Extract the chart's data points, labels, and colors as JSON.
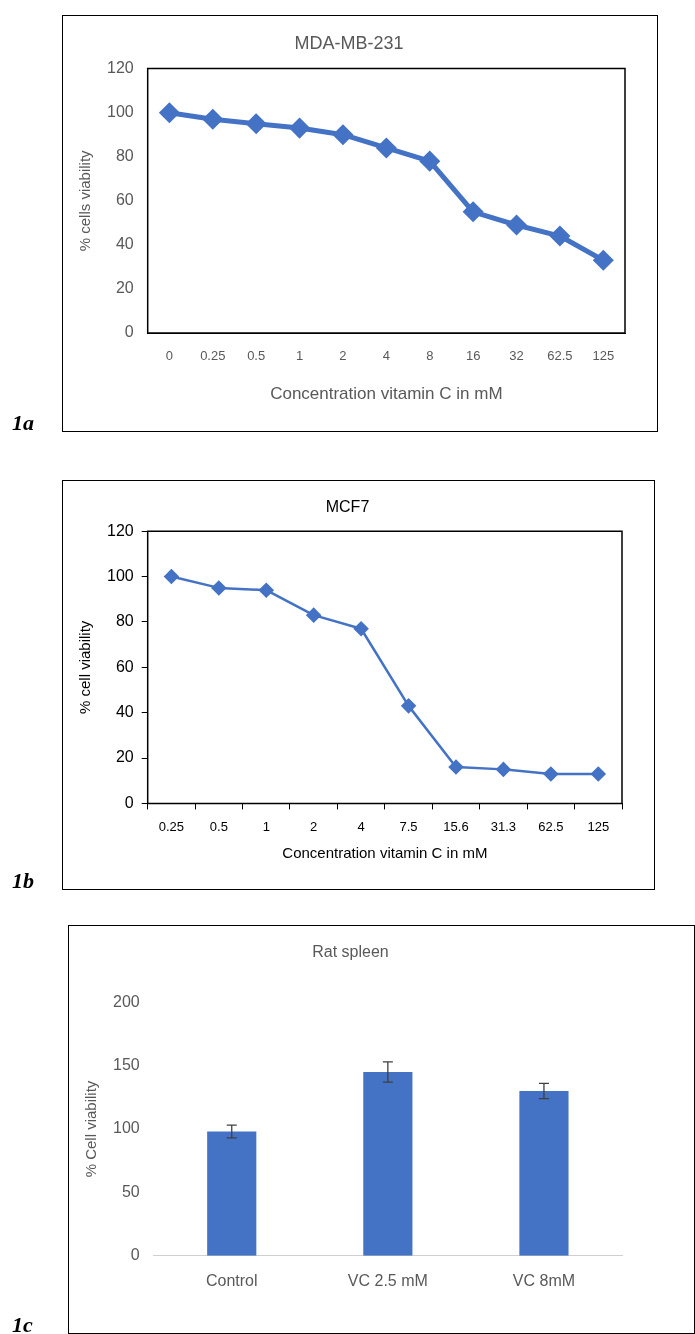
{
  "chart_data": [
    {
      "type": "line",
      "title": "MDA-MB-231",
      "xlabel": "Concentration vitamin C in mM",
      "ylabel": "% cells viability",
      "categories": [
        "0",
        "0.25",
        "0.5",
        "1",
        "2",
        "4",
        "8",
        "16",
        "32",
        "62.5",
        "125"
      ],
      "values": [
        100,
        97,
        95,
        93,
        90,
        84,
        78,
        55,
        49,
        44,
        33
      ],
      "color": "#4472c4",
      "marker": "diamond",
      "ylim": [
        0,
        120
      ],
      "yticks": [
        0,
        20,
        40,
        60,
        80,
        100,
        120
      ],
      "annotations": [
        "1a"
      ]
    },
    {
      "type": "line",
      "title": "MCF7",
      "xlabel": "Concentration vitamin C in mM",
      "ylabel": "% cell viability",
      "categories": [
        "0.25",
        "0.5",
        "1",
        "2",
        "4",
        "7.5",
        "15.6",
        "31.3",
        "62.5",
        "125"
      ],
      "values": [
        100,
        95,
        94,
        83,
        77,
        43,
        16,
        15,
        13,
        13
      ],
      "color": "#4472c4",
      "marker": "diamond",
      "ylim": [
        0,
        120
      ],
      "yticks": [
        0,
        20,
        40,
        60,
        80,
        100,
        120
      ],
      "annotations": [
        "1b"
      ]
    },
    {
      "type": "bar",
      "title": "Rat spleen",
      "ylabel": "% Cell viability",
      "categories": [
        "Control",
        "VC 2.5 mM",
        "VC 8mM"
      ],
      "values": [
        98,
        145,
        130
      ],
      "errors": [
        5,
        8,
        6
      ],
      "color": "#4472c4",
      "ylim": [
        0,
        200
      ],
      "yticks": [
        0,
        50,
        100,
        150,
        200
      ],
      "annotations": [
        "1c"
      ]
    }
  ]
}
